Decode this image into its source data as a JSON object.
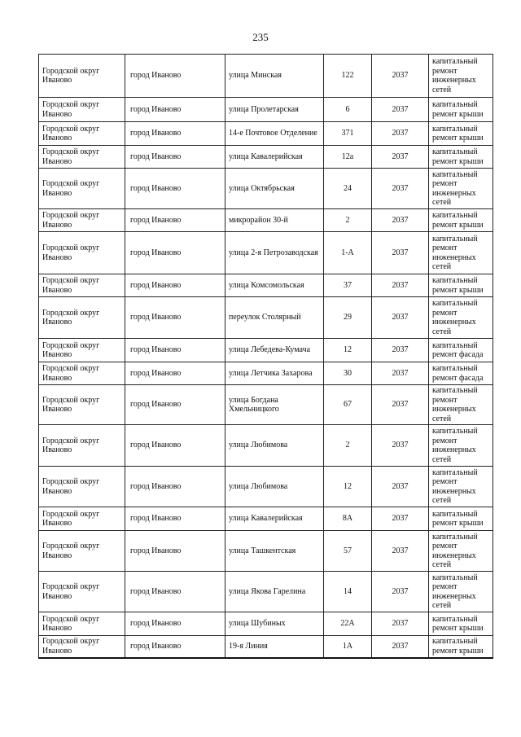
{
  "page_number": "235",
  "rows": [
    {
      "district": "Городской округ Иваново",
      "city": "город Иваново",
      "street": "улица Минская",
      "house": "122",
      "year": "2037",
      "work": "капитальный ремонт инженерных сетей"
    },
    {
      "district": "Городской округ Иваново",
      "city": "город Иваново",
      "street": "улица Пролетарская",
      "house": "6",
      "year": "2037",
      "work": "капитальный ремонт крыши"
    },
    {
      "district": "Городской округ Иваново",
      "city": "город Иваново",
      "street": "14-е Почтовое Отделение",
      "house": "371",
      "year": "2037",
      "work": "капитальный ремонт крыши"
    },
    {
      "district": "Городской округ Иваново",
      "city": "город Иваново",
      "street": "улица Кавалерийская",
      "house": "12а",
      "year": "2037",
      "work": "капитальный ремонт крыши"
    },
    {
      "district": "Городской округ Иваново",
      "city": "город Иваново",
      "street": "улица Октябрьская",
      "house": "24",
      "year": "2037",
      "work": "капитальный ремонт инженерных сетей"
    },
    {
      "district": "Городской округ Иваново",
      "city": "город Иваново",
      "street": "микрорайон 30-й",
      "house": "2",
      "year": "2037",
      "work": "капитальный ремонт крыши"
    },
    {
      "district": "Городской округ Иваново",
      "city": "город Иваново",
      "street": "улица 2-я Петрозаводская",
      "house": "1-А",
      "year": "2037",
      "work": "капитальный ремонт инженерных сетей"
    },
    {
      "district": "Городской округ Иваново",
      "city": "город Иваново",
      "street": "улица Комсомольская",
      "house": "37",
      "year": "2037",
      "work": "капитальный ремонт крыши"
    },
    {
      "district": "Городской округ Иваново",
      "city": "город Иваново",
      "street": "переулок Столярный",
      "house": "29",
      "year": "2037",
      "work": "капитальный ремонт инженерных сетей"
    },
    {
      "district": "Городской округ Иваново",
      "city": "город Иваново",
      "street": "улица Лебедева-Кумача",
      "house": "12",
      "year": "2037",
      "work": "капитальный ремонт фасада"
    },
    {
      "district": "Городской округ Иваново",
      "city": "город Иваново",
      "street": "улица Летчика Захарова",
      "house": "30",
      "year": "2037",
      "work": "капитальный ремонт фасада"
    },
    {
      "district": "Городской округ Иваново",
      "city": "город Иваново",
      "street": "улица Богдана Хмельницкого",
      "house": "67",
      "year": "2037",
      "work": "капитальный ремонт инженерных сетей"
    },
    {
      "district": "Городской округ Иваново",
      "city": "город Иваново",
      "street": "улица Любимова",
      "house": "2",
      "year": "2037",
      "work": "капитальный ремонт инженерных сетей"
    },
    {
      "district": "Городской округ Иваново",
      "city": "город Иваново",
      "street": "улица Любимова",
      "house": "12",
      "year": "2037",
      "work": "капитальный ремонт инженерных сетей"
    },
    {
      "district": "Городской округ Иваново",
      "city": "город Иваново",
      "street": "улица Кавалерийская",
      "house": "8А",
      "year": "2037",
      "work": "капитальный ремонт крыши"
    },
    {
      "district": "Городской округ Иваново",
      "city": "город Иваново",
      "street": "улица Ташкентская",
      "house": "57",
      "year": "2037",
      "work": "капитальный ремонт инженерных сетей"
    },
    {
      "district": "Городской округ Иваново",
      "city": "город Иваново",
      "street": "улица Якова Гарелина",
      "house": "14",
      "year": "2037",
      "work": "капитальный ремонт инженерных сетей"
    },
    {
      "district": "Городской округ Иваново",
      "city": "город Иваново",
      "street": "улица Шубиных",
      "house": "22А",
      "year": "2037",
      "work": "капитальный ремонт крыши"
    },
    {
      "district": "Городской округ Иваново",
      "city": "город Иваново",
      "street": "19-я Линия",
      "house": "1А",
      "year": "2037",
      "work": "капитальный ремонт крыши"
    }
  ]
}
